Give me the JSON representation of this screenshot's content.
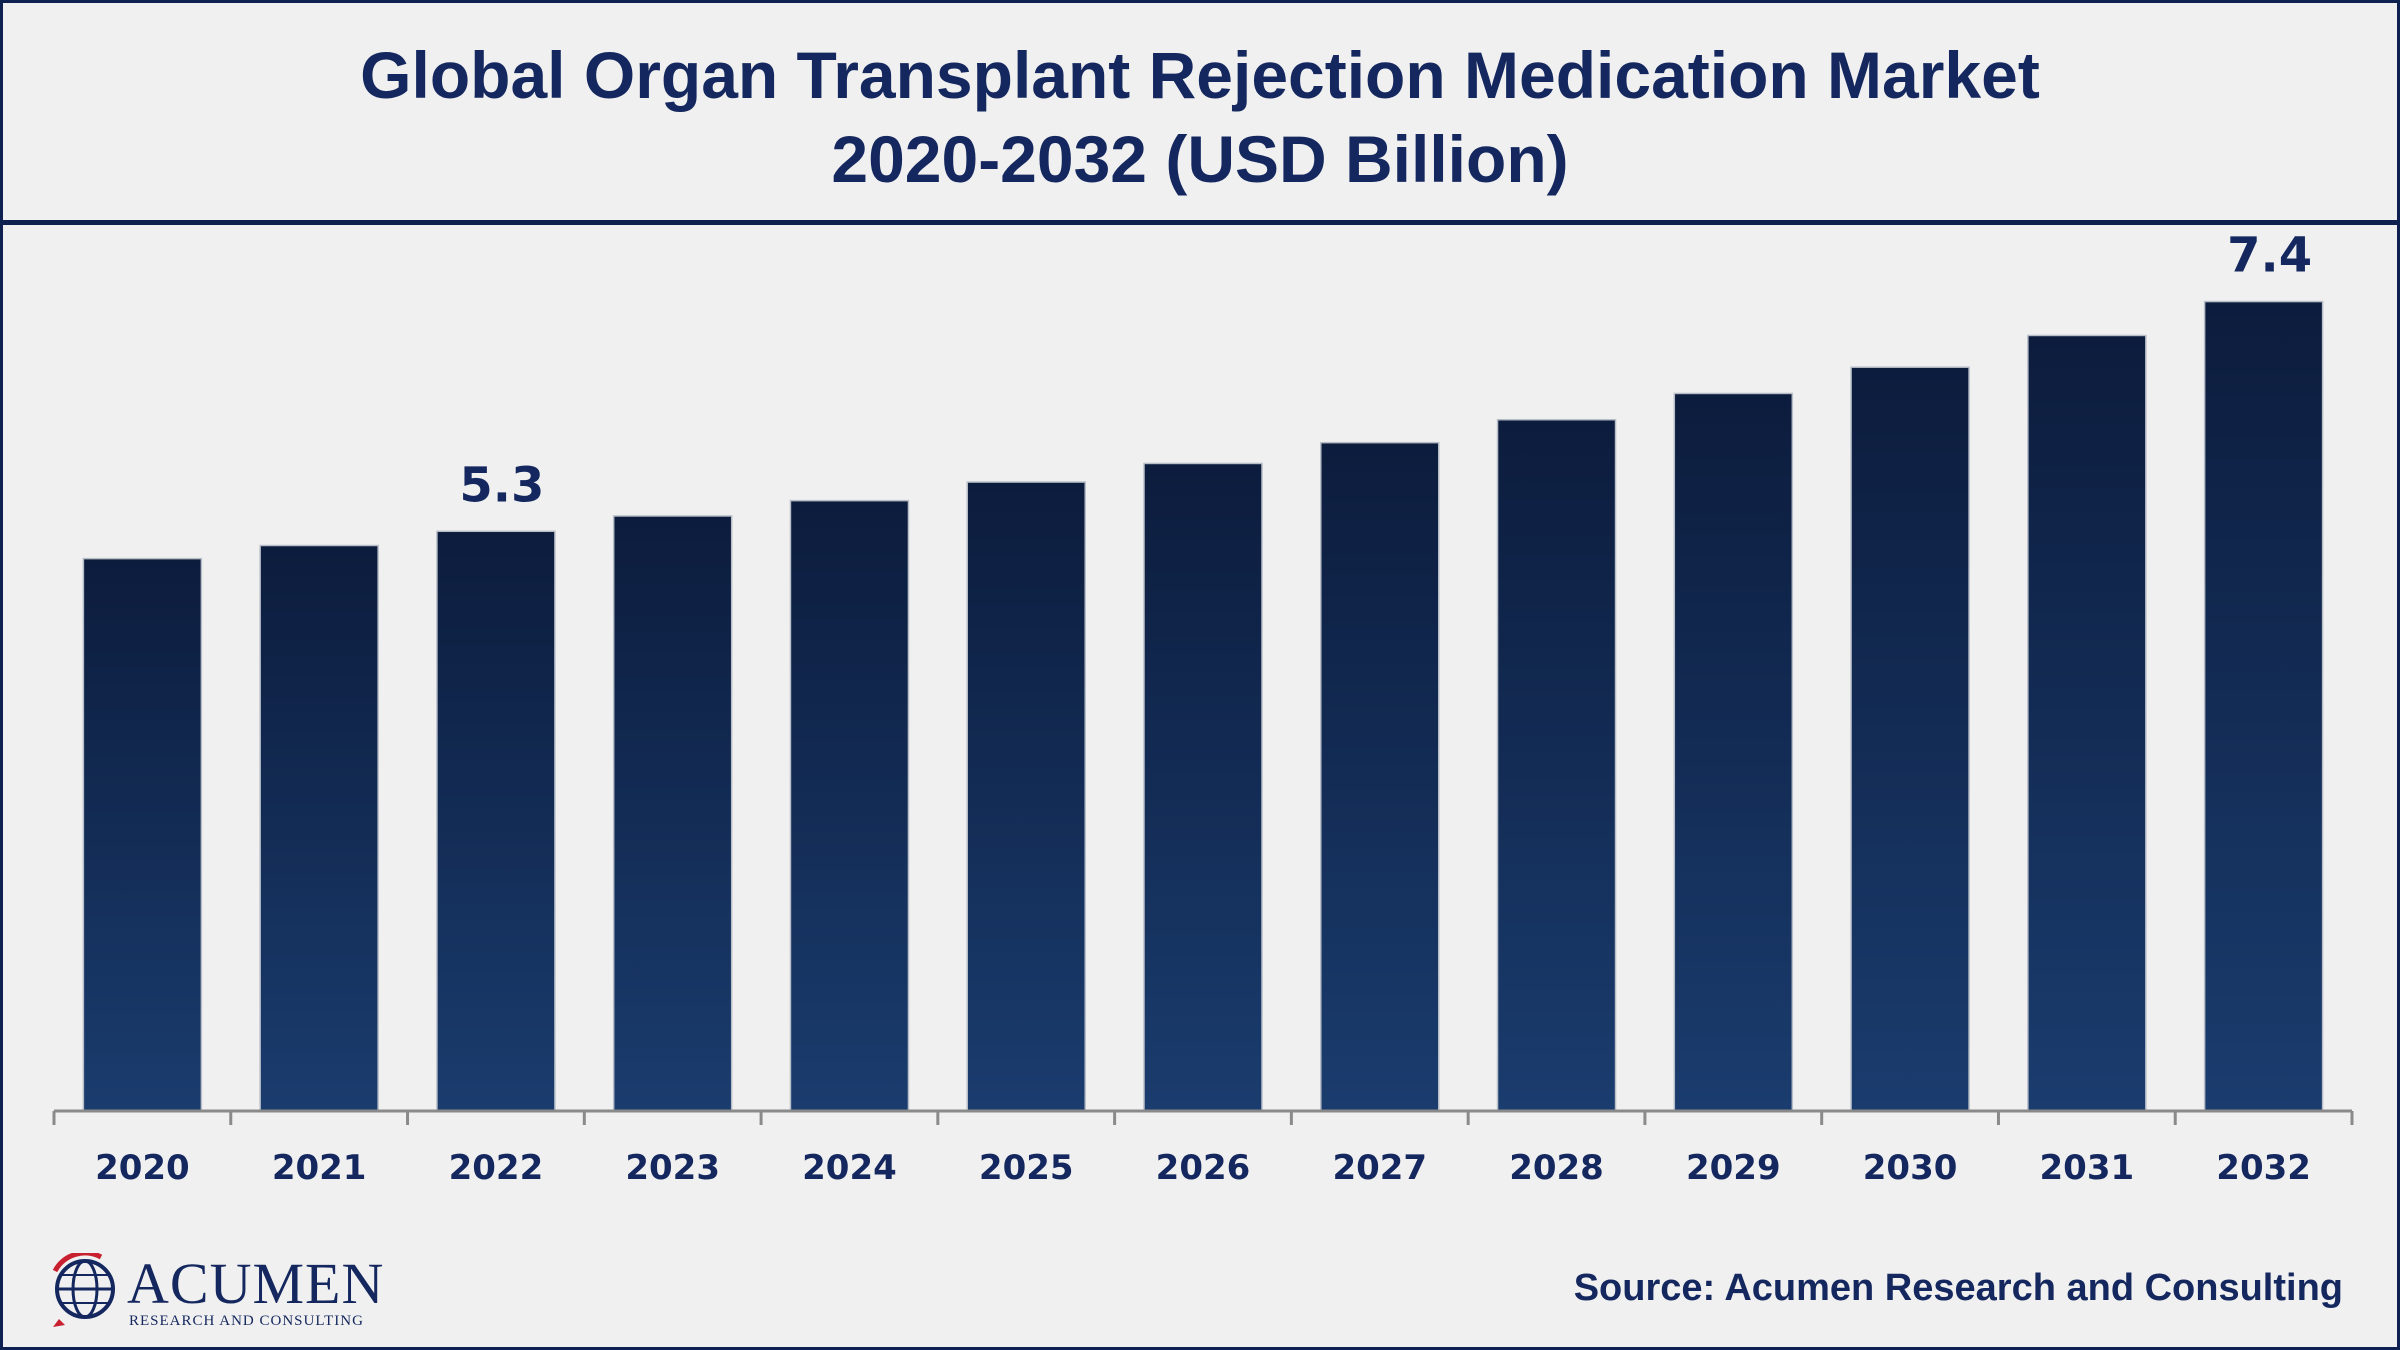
{
  "title": {
    "line1": "Global Organ Transplant Rejection Medication Market",
    "line2": "2020-2032 (USD Billion)"
  },
  "source": "Source: Acumen Research and Consulting",
  "logo": {
    "name": "ACUMEN",
    "tagline": "RESEARCH AND CONSULTING"
  },
  "colors": {
    "bar_top": "#0c1c3d",
    "bar_bottom": "#1a3c6e",
    "text": "#14275e",
    "border": "#0f2150"
  },
  "chart_data": {
    "type": "bar",
    "categories": [
      "2020",
      "2021",
      "2022",
      "2023",
      "2024",
      "2025",
      "2026",
      "2027",
      "2028",
      "2029",
      "2030",
      "2031",
      "2032"
    ],
    "values": [
      5.05,
      5.17,
      5.3,
      5.44,
      5.58,
      5.75,
      5.92,
      6.11,
      6.32,
      6.56,
      6.8,
      7.09,
      7.4
    ],
    "data_labels": [
      {
        "index": 2,
        "text": "5.3"
      },
      {
        "index": 12,
        "text": "7.4"
      }
    ],
    "ylim": [
      0,
      8.1
    ],
    "grid": false
  }
}
